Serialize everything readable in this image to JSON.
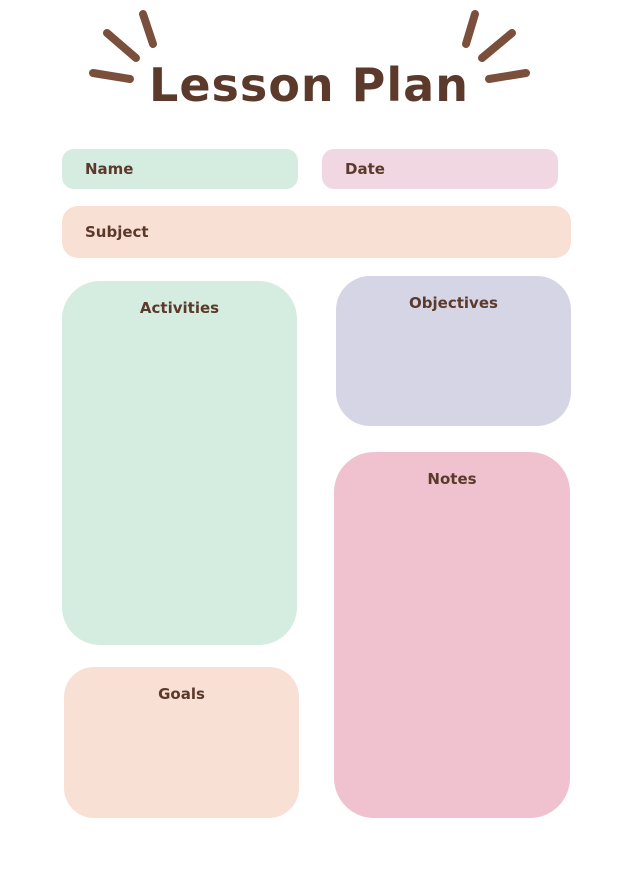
{
  "title": "Lesson Plan",
  "colors": {
    "ink": "#5b3a2b",
    "mint": "#d5ece0",
    "pink_light": "#f1d7e2",
    "peach": "#f9e0d5",
    "lavender": "#d6d5e6",
    "rose": "#f0c2cf"
  },
  "icons": {
    "burst": "sunburst-strokes-icon"
  },
  "fields": {
    "name": "Name",
    "date": "Date",
    "subject": "Subject"
  },
  "panels": {
    "activities": "Activities",
    "objectives": "Objectives",
    "notes": "Notes",
    "goals": "Goals"
  }
}
